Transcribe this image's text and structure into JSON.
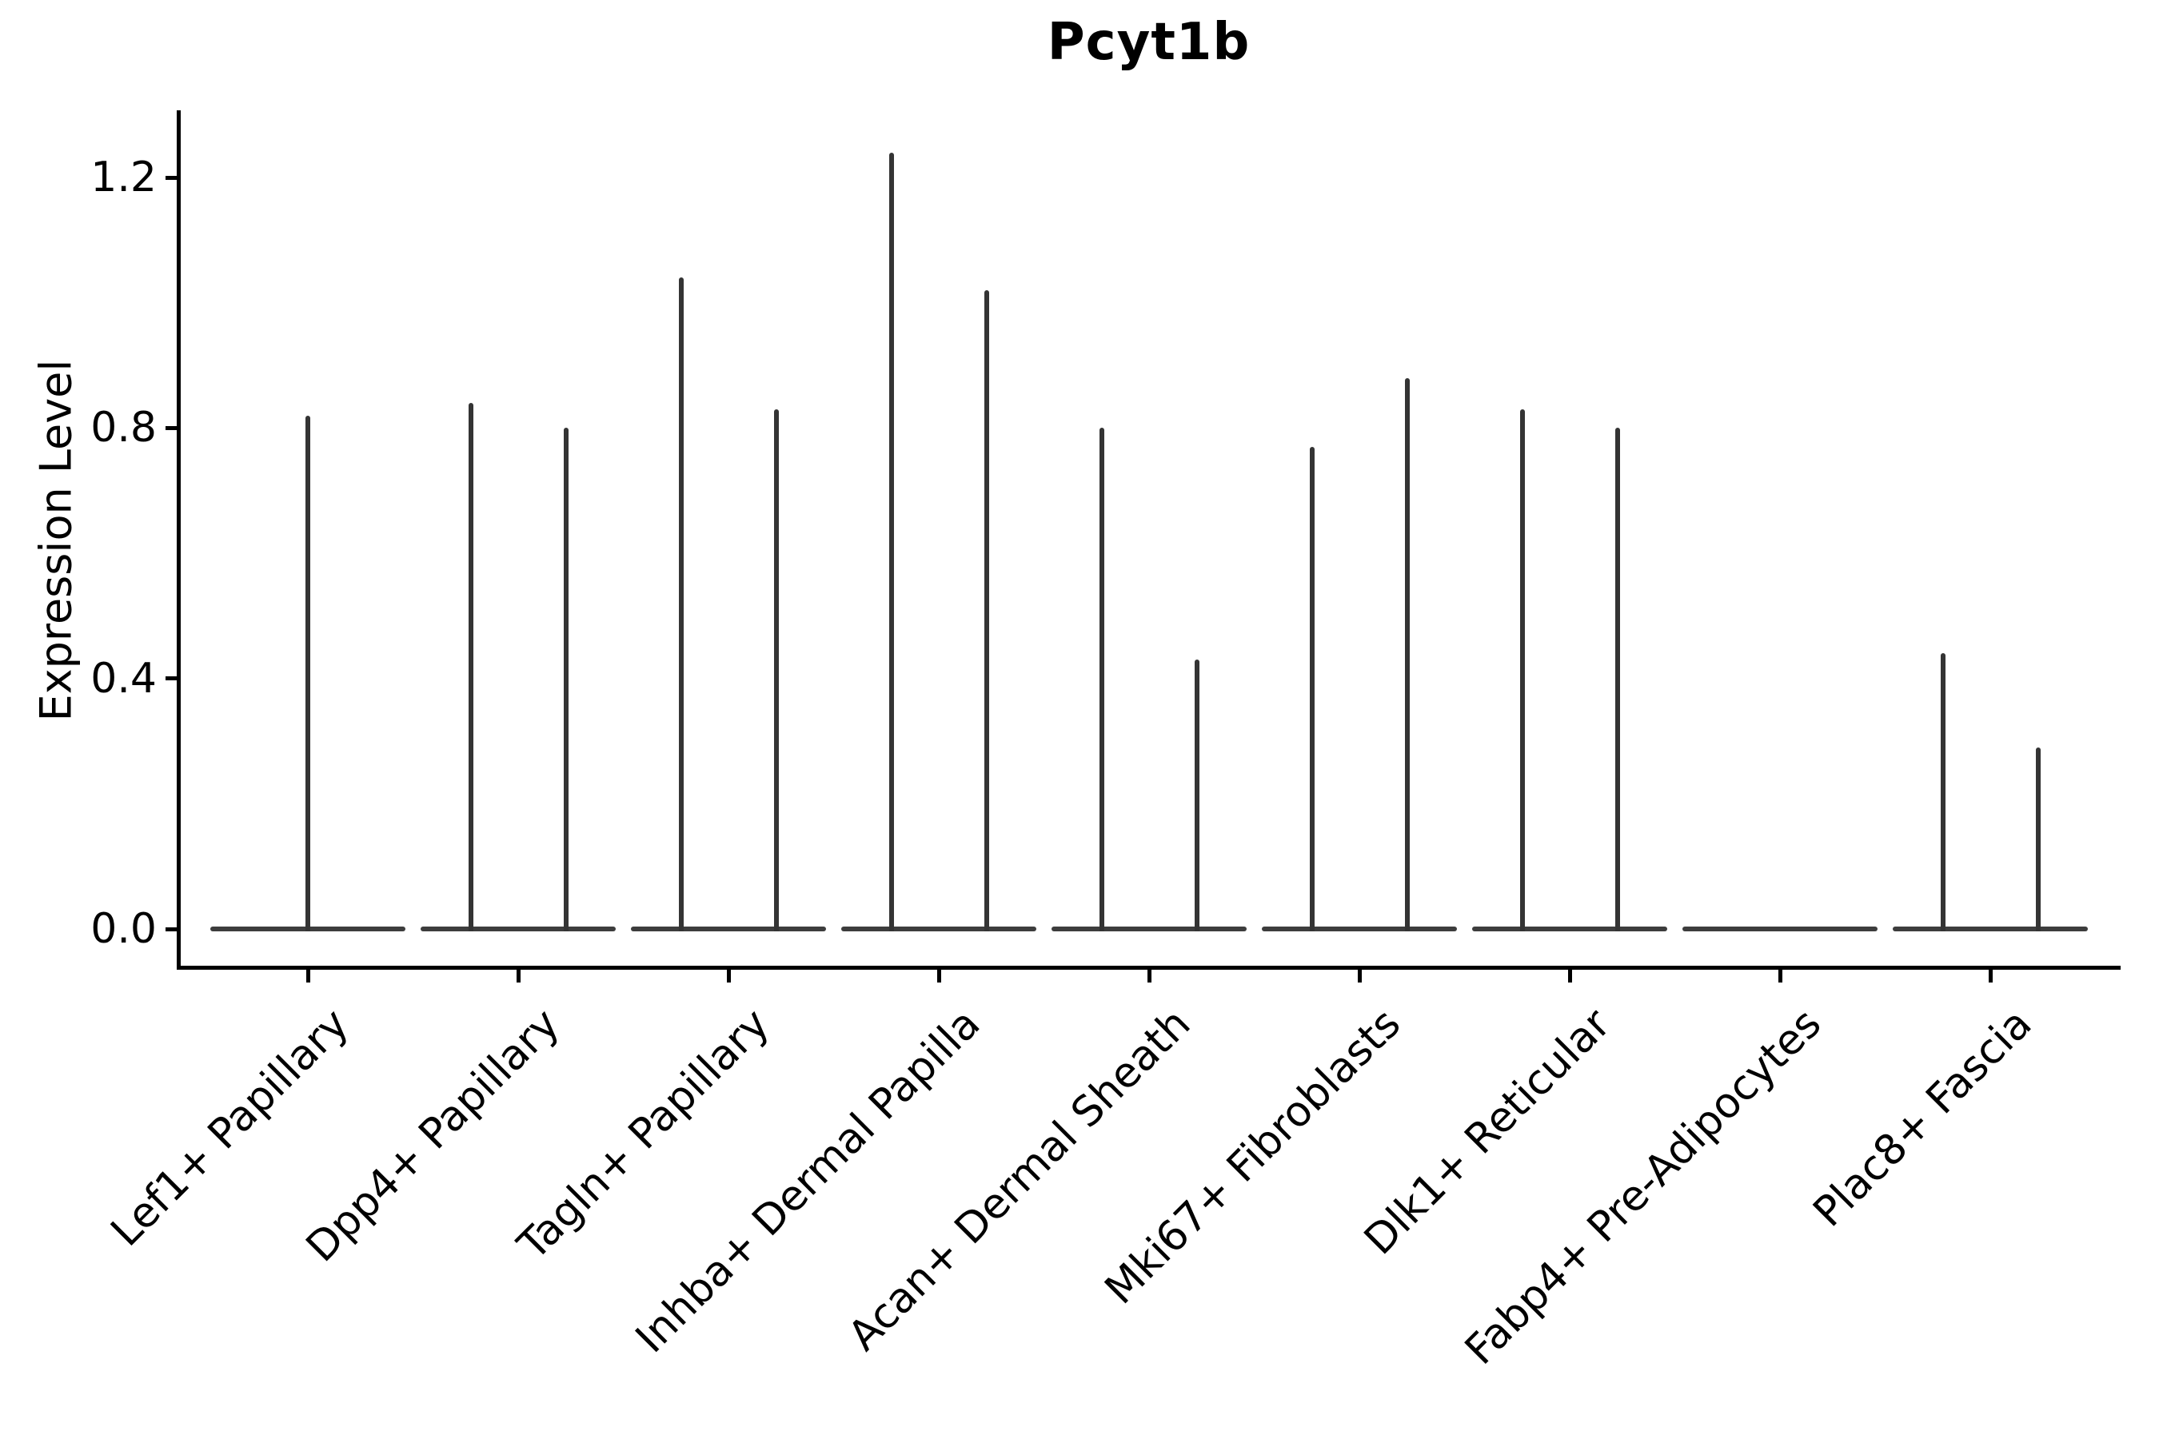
{
  "chart_data": {
    "type": "violin",
    "title": "Pcyt1b",
    "ylabel": "Expression Level",
    "xlabel": "",
    "grid": false,
    "legend": "none",
    "ink_color": "#3d3d3d",
    "axis_color": "#000000",
    "ytick_labels": [
      "0.0",
      "0.4",
      "0.8",
      "1.2"
    ],
    "ytick_values": [
      0.0,
      0.4,
      0.8,
      1.2
    ],
    "ylim": [
      -0.06,
      1.31
    ],
    "categories": [
      "Lef1+ Papillary",
      "Dpp4+ Papillary",
      "Tagln+ Papillary",
      "Inhba+ Dermal Papilla",
      "Acan+ Dermal Sheath",
      "Mki67+ Fibroblasts",
      "Dlk1+ Reticular",
      "Fabp4+ Pre-Adipocytes",
      "Plac8+ Fascia"
    ],
    "violin_maxima": [
      {
        "category": "Lef1+ Papillary",
        "violins": [
          {
            "position": "center",
            "max": 0.82
          }
        ]
      },
      {
        "category": "Dpp4+ Papillary",
        "violins": [
          {
            "position": "left",
            "max": 0.84
          },
          {
            "position": "right",
            "max": 0.8
          }
        ]
      },
      {
        "category": "Tagln+ Papillary",
        "violins": [
          {
            "position": "left",
            "max": 1.04
          },
          {
            "position": "right",
            "max": 0.83
          }
        ]
      },
      {
        "category": "Inhba+ Dermal Papilla",
        "violins": [
          {
            "position": "left",
            "max": 1.24
          },
          {
            "position": "right",
            "max": 1.02
          }
        ]
      },
      {
        "category": "Acan+ Dermal Sheath",
        "violins": [
          {
            "position": "left",
            "max": 0.8
          },
          {
            "position": "right",
            "max": 0.43
          }
        ]
      },
      {
        "category": "Mki67+ Fibroblasts",
        "violins": [
          {
            "position": "left",
            "max": 0.77
          },
          {
            "position": "right",
            "max": 0.88
          }
        ]
      },
      {
        "category": "Dlk1+ Reticular",
        "violins": [
          {
            "position": "left",
            "max": 0.83
          },
          {
            "position": "right",
            "max": 0.8
          }
        ]
      },
      {
        "category": "Fabp4+ Pre-Adipocytes",
        "violins": []
      },
      {
        "category": "Plac8+ Fascia",
        "violins": [
          {
            "position": "left",
            "max": 0.44
          },
          {
            "position": "right",
            "max": 0.29
          }
        ]
      }
    ]
  }
}
